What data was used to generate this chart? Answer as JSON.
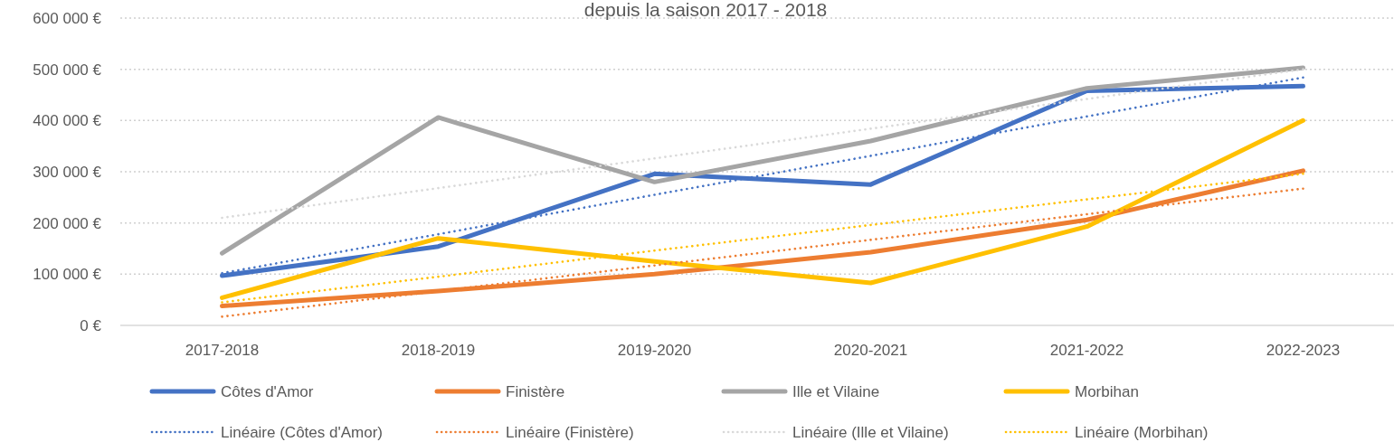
{
  "chart_data": {
    "type": "line",
    "title": "depuis la saison 2017 - 2018",
    "categories": [
      "2017-2018",
      "2018-2019",
      "2019-2020",
      "2020-2021",
      "2021-2022",
      "2022-2023"
    ],
    "ylim": [
      0,
      600000
    ],
    "yticks": [
      {
        "value": 0,
        "label": "0 €"
      },
      {
        "value": 100000,
        "label": "100 000 €"
      },
      {
        "value": 200000,
        "label": "200 000 €"
      },
      {
        "value": 300000,
        "label": "300 000 €"
      },
      {
        "value": 400000,
        "label": "400 000 €"
      },
      {
        "value": 500000,
        "label": "500 000 €"
      },
      {
        "value": 600000,
        "label": "600 000 €"
      }
    ],
    "grid": "y",
    "legend": "bottom",
    "marker": "none",
    "series": [
      {
        "name": "Côtes d'Amor",
        "color": "#4472c4",
        "line_style": "solid",
        "values": [
          97000,
          154000,
          296000,
          275000,
          458000,
          467000
        ]
      },
      {
        "name": "Finistère",
        "color": "#ed7d31",
        "line_style": "solid",
        "values": [
          38000,
          67000,
          100000,
          143000,
          206000,
          302000
        ]
      },
      {
        "name": "Ille et Vilaine",
        "color": "#a5a5a5",
        "line_style": "solid",
        "values": [
          141000,
          406000,
          280000,
          360000,
          463000,
          503000
        ]
      },
      {
        "name": "Morbihan",
        "color": "#ffc000",
        "line_style": "solid",
        "values": [
          54000,
          170000,
          125000,
          83000,
          193000,
          400000
        ]
      },
      {
        "name": "Linéaire (Côtes d'Amor)",
        "color": "#4472c4",
        "line_style": "dotted",
        "values": [
          102000,
          178000,
          255000,
          331000,
          408000,
          484000
        ]
      },
      {
        "name": "Linéaire (Finistère)",
        "color": "#ed7d31",
        "line_style": "dotted",
        "values": [
          17000,
          67000,
          117000,
          167000,
          217000,
          267000
        ]
      },
      {
        "name": "Linéaire (Ille et Vilaine)",
        "color": "#d9d9d9",
        "line_style": "dotted",
        "values": [
          210000,
          268000,
          326000,
          384000,
          442000,
          500000
        ]
      },
      {
        "name": "Linéaire (Morbihan)",
        "color": "#ffc000",
        "line_style": "dotted",
        "values": [
          45000,
          95000,
          146000,
          196000,
          246000,
          296000
        ]
      }
    ]
  }
}
